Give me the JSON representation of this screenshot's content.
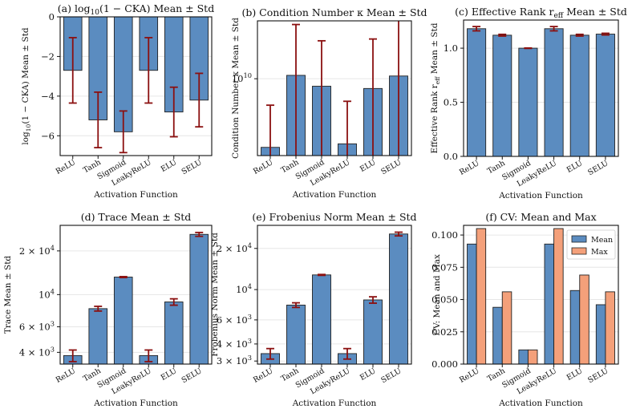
{
  "colors": {
    "mean": "#5b8cc0",
    "max": "#f4a07a",
    "error": "#8b1010",
    "edge": "#222222",
    "grid": "#e6e6e6"
  },
  "chart_data": [
    {
      "id": "a",
      "type": "bar",
      "yscale": "linear",
      "title_prefix": "(a) log",
      "title_sub": "10",
      "title_suffix": "(1 − CKA) Mean ± Std",
      "xlabel": "Activation Function",
      "ylabel_prefix": "log",
      "ylabel_sub": "10",
      "ylabel_suffix": "(1 − CKA) Mean ± Std",
      "categories": [
        "ReLU",
        "Tanh",
        "Sigmoid",
        "LeakyReLU",
        "ELU",
        "SELU"
      ],
      "values": [
        -2.7,
        -5.2,
        -5.8,
        -2.7,
        -4.8,
        -4.2
      ],
      "errors": [
        1.65,
        1.4,
        1.05,
        1.65,
        1.25,
        1.35
      ],
      "ylim": [
        -7.0,
        0
      ],
      "yticks": [
        {
          "v": 0,
          "label": "0"
        },
        {
          "v": -2,
          "label": "−2"
        },
        {
          "v": -4,
          "label": "−4"
        },
        {
          "v": -6,
          "label": "−6"
        }
      ]
    },
    {
      "id": "b",
      "type": "bar",
      "yscale": "log",
      "title": "(b) Condition Number κ Mean ± Std",
      "xlabel": "Activation Function",
      "ylabel": "Condition Number κ Mean ± Std",
      "categories": [
        "ReLU",
        "Tanh",
        "Sigmoid",
        "LeakyReLU",
        "ELU",
        "SELU"
      ],
      "values": [
        1450000000.0,
        11000000000.0,
        8100000000.0,
        1600000000.0,
        7600000000.0,
        10800000000.0
      ],
      "err_low": [
        1450000000.0,
        11000000000.0,
        8100000000.0,
        1600000000.0,
        7600000000.0,
        10800000000.0
      ],
      "err_high": [
        3300000000.0,
        35000000000.0,
        21000000000.0,
        3700000000.0,
        23000000000.0,
        41000000000.0
      ],
      "ylim": [
        1150000000.0,
        51000000000.0
      ],
      "yticks": [
        {
          "v": 10000000000.0,
          "label": "10",
          "sup": "10"
        }
      ]
    },
    {
      "id": "c",
      "type": "bar",
      "yscale": "linear",
      "title_prefix": "(c) Effective Rank r",
      "title_sub": "eff",
      "title_suffix": " Mean ± Std",
      "xlabel": "Activation Function",
      "ylabel_prefix": "Effective Rank r",
      "ylabel_sub": "eff",
      "ylabel_suffix": " Mean ± Std",
      "categories": [
        "ReLU",
        "Tanh",
        "Sigmoid",
        "LeakyReLU",
        "ELU",
        "SELU"
      ],
      "values": [
        1.18,
        1.12,
        1.0,
        1.18,
        1.12,
        1.13
      ],
      "errors": [
        0.02,
        0.008,
        0.002,
        0.02,
        0.008,
        0.008
      ],
      "ylim": [
        0,
        1.26
      ],
      "yticks": [
        {
          "v": 0,
          "label": "0.0"
        },
        {
          "v": 0.5,
          "label": "0.5"
        },
        {
          "v": 1.0,
          "label": "1.0"
        }
      ]
    },
    {
      "id": "d",
      "type": "bar",
      "yscale": "log",
      "title": "(d) Trace Mean ± Std",
      "xlabel": "Activation Function",
      "ylabel": "Trace Mean ± Std",
      "categories": [
        "ReLU",
        "Tanh",
        "Sigmoid",
        "LeakyReLU",
        "ELU",
        "SELU"
      ],
      "values": [
        3800,
        8000,
        13200,
        3800,
        8900,
        26000
      ],
      "err_low": [
        350,
        300,
        100,
        350,
        450,
        800
      ],
      "err_high": [
        350,
        300,
        100,
        350,
        450,
        800
      ],
      "ylim": [
        3320,
        30000
      ],
      "yticks": [
        {
          "v": 4000,
          "label": "4 × 10",
          "sup": "3"
        },
        {
          "v": 6000,
          "label": "6 × 10",
          "sup": "3"
        },
        {
          "v": 10000,
          "label": "10",
          "sup": "4"
        },
        {
          "v": 20000,
          "label": "2 × 10",
          "sup": "4"
        }
      ]
    },
    {
      "id": "e",
      "type": "bar",
      "yscale": "log",
      "title": "(e) Frobenius Norm Mean ± Std",
      "xlabel": "Activation Function",
      "ylabel": "Frobenius Norm Mean ± Std",
      "categories": [
        "ReLU",
        "Tanh",
        "Sigmoid",
        "LeakyReLU",
        "ELU",
        "SELU"
      ],
      "values": [
        3400,
        7700,
        12800,
        3400,
        8400,
        25500
      ],
      "err_low": [
        300,
        300,
        100,
        300,
        450,
        800
      ],
      "err_high": [
        300,
        300,
        100,
        300,
        450,
        800
      ],
      "ylim": [
        2850,
        29500
      ],
      "yticks": [
        {
          "v": 3000,
          "label": "3 × 10",
          "sup": "3"
        },
        {
          "v": 4000,
          "label": "4 × 10",
          "sup": "3"
        },
        {
          "v": 6000,
          "label": "6 × 10",
          "sup": "3"
        },
        {
          "v": 10000,
          "label": "10",
          "sup": "4"
        },
        {
          "v": 20000,
          "label": "2 × 10",
          "sup": "4"
        }
      ]
    },
    {
      "id": "f",
      "type": "bar",
      "yscale": "linear",
      "title": "(f) CV: Mean and Max",
      "xlabel": "Activation Function",
      "ylabel": "CV: Mean and Max",
      "categories": [
        "ReLU",
        "Tanh",
        "Sigmoid",
        "LeakyReLU",
        "ELU",
        "SELU"
      ],
      "series": [
        {
          "name": "Mean",
          "values": [
            0.093,
            0.044,
            0.011,
            0.093,
            0.057,
            0.046
          ]
        },
        {
          "name": "Max",
          "values": [
            0.105,
            0.056,
            0.011,
            0.105,
            0.069,
            0.056
          ]
        }
      ],
      "legend_position": "top-right",
      "ylim": [
        0,
        0.1075
      ],
      "yticks": [
        {
          "v": 0,
          "label": "0.000"
        },
        {
          "v": 0.025,
          "label": "0.025"
        },
        {
          "v": 0.05,
          "label": "0.050"
        },
        {
          "v": 0.075,
          "label": "0.075"
        },
        {
          "v": 0.1,
          "label": "0.100"
        }
      ]
    }
  ]
}
